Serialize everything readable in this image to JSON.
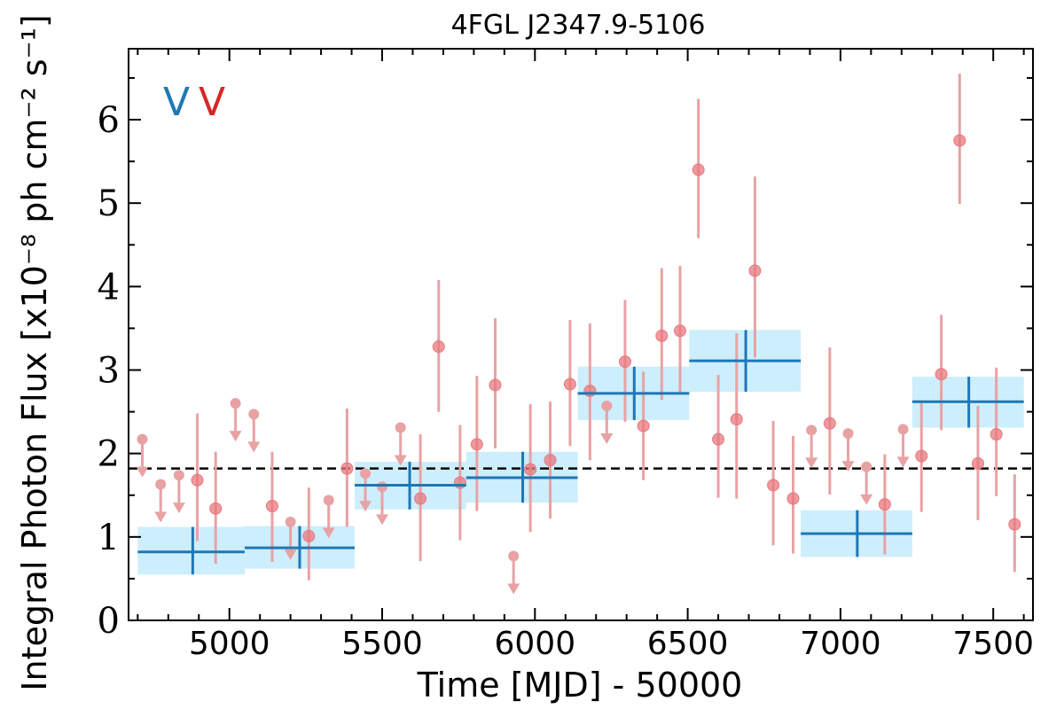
{
  "chart_data": {
    "type": "scatter",
    "title": "4FGL J2347.9-5106",
    "xlabel": "Time [MJD] - 50000",
    "ylabel": "Integral Photon Flux [x10⁻⁸ ph cm⁻² s⁻¹]",
    "xlim": [
      4670,
      7630
    ],
    "ylim": [
      0,
      6.85
    ],
    "xticks": [
      5000,
      5500,
      6000,
      6500,
      7000,
      7500
    ],
    "yticks": [
      0,
      1,
      2,
      3,
      4,
      5,
      6
    ],
    "reference_level": 1.82,
    "reference_style": "dashed black",
    "markers": [
      {
        "text": "V",
        "color": "#1f77b4"
      },
      {
        "text": "V",
        "color": "#d62728"
      }
    ],
    "colors": {
      "binned_line": "#1f77b4",
      "binned_box": "#cdeefc",
      "points": "#e8787e",
      "errorbars": "#e8a2a4"
    },
    "binned_series": [
      {
        "x": 4880,
        "xmin": 4700,
        "xmax": 5050,
        "y": 0.82,
        "ylo": 0.55,
        "yhi": 1.12
      },
      {
        "x": 5230,
        "xmin": 5050,
        "xmax": 5410,
        "y": 0.87,
        "ylo": 0.62,
        "yhi": 1.13
      },
      {
        "x": 5590,
        "xmin": 5410,
        "xmax": 5775,
        "y": 1.62,
        "ylo": 1.33,
        "yhi": 1.9
      },
      {
        "x": 5960,
        "xmin": 5775,
        "xmax": 6140,
        "y": 1.71,
        "ylo": 1.41,
        "yhi": 2.02
      },
      {
        "x": 6325,
        "xmin": 6140,
        "xmax": 6505,
        "y": 2.72,
        "ylo": 2.4,
        "yhi": 3.04
      },
      {
        "x": 6690,
        "xmin": 6505,
        "xmax": 6870,
        "y": 3.11,
        "ylo": 2.74,
        "yhi": 3.48
      },
      {
        "x": 7055,
        "xmin": 6870,
        "xmax": 7235,
        "y": 1.04,
        "ylo": 0.76,
        "yhi": 1.32
      },
      {
        "x": 7420,
        "xmin": 7235,
        "xmax": 7600,
        "y": 2.62,
        "ylo": 2.31,
        "yhi": 2.92
      }
    ],
    "detections": [
      {
        "x": 4895,
        "y": 1.68,
        "ylo": 0.95,
        "yhi": 2.48
      },
      {
        "x": 4955,
        "y": 1.34,
        "ylo": 0.68,
        "yhi": 2.02
      },
      {
        "x": 5140,
        "y": 1.37,
        "ylo": 0.7,
        "yhi": 2.02
      },
      {
        "x": 5260,
        "y": 1.01,
        "ylo": 0.48,
        "yhi": 1.59
      },
      {
        "x": 5385,
        "y": 1.82,
        "ylo": 1.12,
        "yhi": 2.54
      },
      {
        "x": 5625,
        "y": 1.46,
        "ylo": 0.71,
        "yhi": 2.23
      },
      {
        "x": 5685,
        "y": 3.28,
        "ylo": 2.5,
        "yhi": 4.08
      },
      {
        "x": 5755,
        "y": 1.65,
        "ylo": 0.96,
        "yhi": 2.34
      },
      {
        "x": 5810,
        "y": 2.11,
        "ylo": 1.31,
        "yhi": 2.93
      },
      {
        "x": 5870,
        "y": 2.82,
        "ylo": 2.06,
        "yhi": 3.62
      },
      {
        "x": 5985,
        "y": 1.81,
        "ylo": 1.06,
        "yhi": 2.59
      },
      {
        "x": 6050,
        "y": 1.92,
        "ylo": 1.22,
        "yhi": 2.62
      },
      {
        "x": 6115,
        "y": 2.83,
        "ylo": 2.09,
        "yhi": 3.6
      },
      {
        "x": 6180,
        "y": 2.75,
        "ylo": 1.92,
        "yhi": 3.56
      },
      {
        "x": 6295,
        "y": 3.1,
        "ylo": 2.38,
        "yhi": 3.84
      },
      {
        "x": 6355,
        "y": 2.33,
        "ylo": 1.68,
        "yhi": 2.98
      },
      {
        "x": 6415,
        "y": 3.41,
        "ylo": 2.64,
        "yhi": 4.22
      },
      {
        "x": 6475,
        "y": 3.47,
        "ylo": 2.72,
        "yhi": 4.25
      },
      {
        "x": 6535,
        "y": 5.4,
        "ylo": 4.58,
        "yhi": 6.25
      },
      {
        "x": 6600,
        "y": 2.17,
        "ylo": 1.47,
        "yhi": 2.94
      },
      {
        "x": 6660,
        "y": 2.41,
        "ylo": 1.46,
        "yhi": 3.44
      },
      {
        "x": 6720,
        "y": 4.19,
        "ylo": 3.15,
        "yhi": 5.32
      },
      {
        "x": 6780,
        "y": 1.62,
        "ylo": 0.9,
        "yhi": 2.39
      },
      {
        "x": 6845,
        "y": 1.46,
        "ylo": 0.8,
        "yhi": 2.21
      },
      {
        "x": 6965,
        "y": 2.36,
        "ylo": 1.51,
        "yhi": 3.27
      },
      {
        "x": 7145,
        "y": 1.39,
        "ylo": 0.79,
        "yhi": 1.99
      },
      {
        "x": 7265,
        "y": 1.97,
        "ylo": 1.3,
        "yhi": 2.63
      },
      {
        "x": 7330,
        "y": 2.95,
        "ylo": 2.28,
        "yhi": 3.66
      },
      {
        "x": 7390,
        "y": 5.75,
        "ylo": 4.99,
        "yhi": 6.55
      },
      {
        "x": 7450,
        "y": 1.88,
        "ylo": 1.2,
        "yhi": 2.57
      },
      {
        "x": 7510,
        "y": 2.23,
        "ylo": 1.49,
        "yhi": 3.03
      },
      {
        "x": 7570,
        "y": 1.15,
        "ylo": 0.58,
        "yhi": 1.75
      }
    ],
    "upper_limits": [
      {
        "x": 4715,
        "y": 2.17
      },
      {
        "x": 4775,
        "y": 1.63
      },
      {
        "x": 4835,
        "y": 1.74
      },
      {
        "x": 5020,
        "y": 2.6
      },
      {
        "x": 5080,
        "y": 2.47
      },
      {
        "x": 5200,
        "y": 1.18
      },
      {
        "x": 5325,
        "y": 1.44
      },
      {
        "x": 5445,
        "y": 1.76
      },
      {
        "x": 5500,
        "y": 1.6
      },
      {
        "x": 5560,
        "y": 2.31
      },
      {
        "x": 5930,
        "y": 0.77
      },
      {
        "x": 6235,
        "y": 2.57
      },
      {
        "x": 6905,
        "y": 2.28
      },
      {
        "x": 7025,
        "y": 2.24
      },
      {
        "x": 7085,
        "y": 1.84
      },
      {
        "x": 7205,
        "y": 2.29
      }
    ]
  }
}
